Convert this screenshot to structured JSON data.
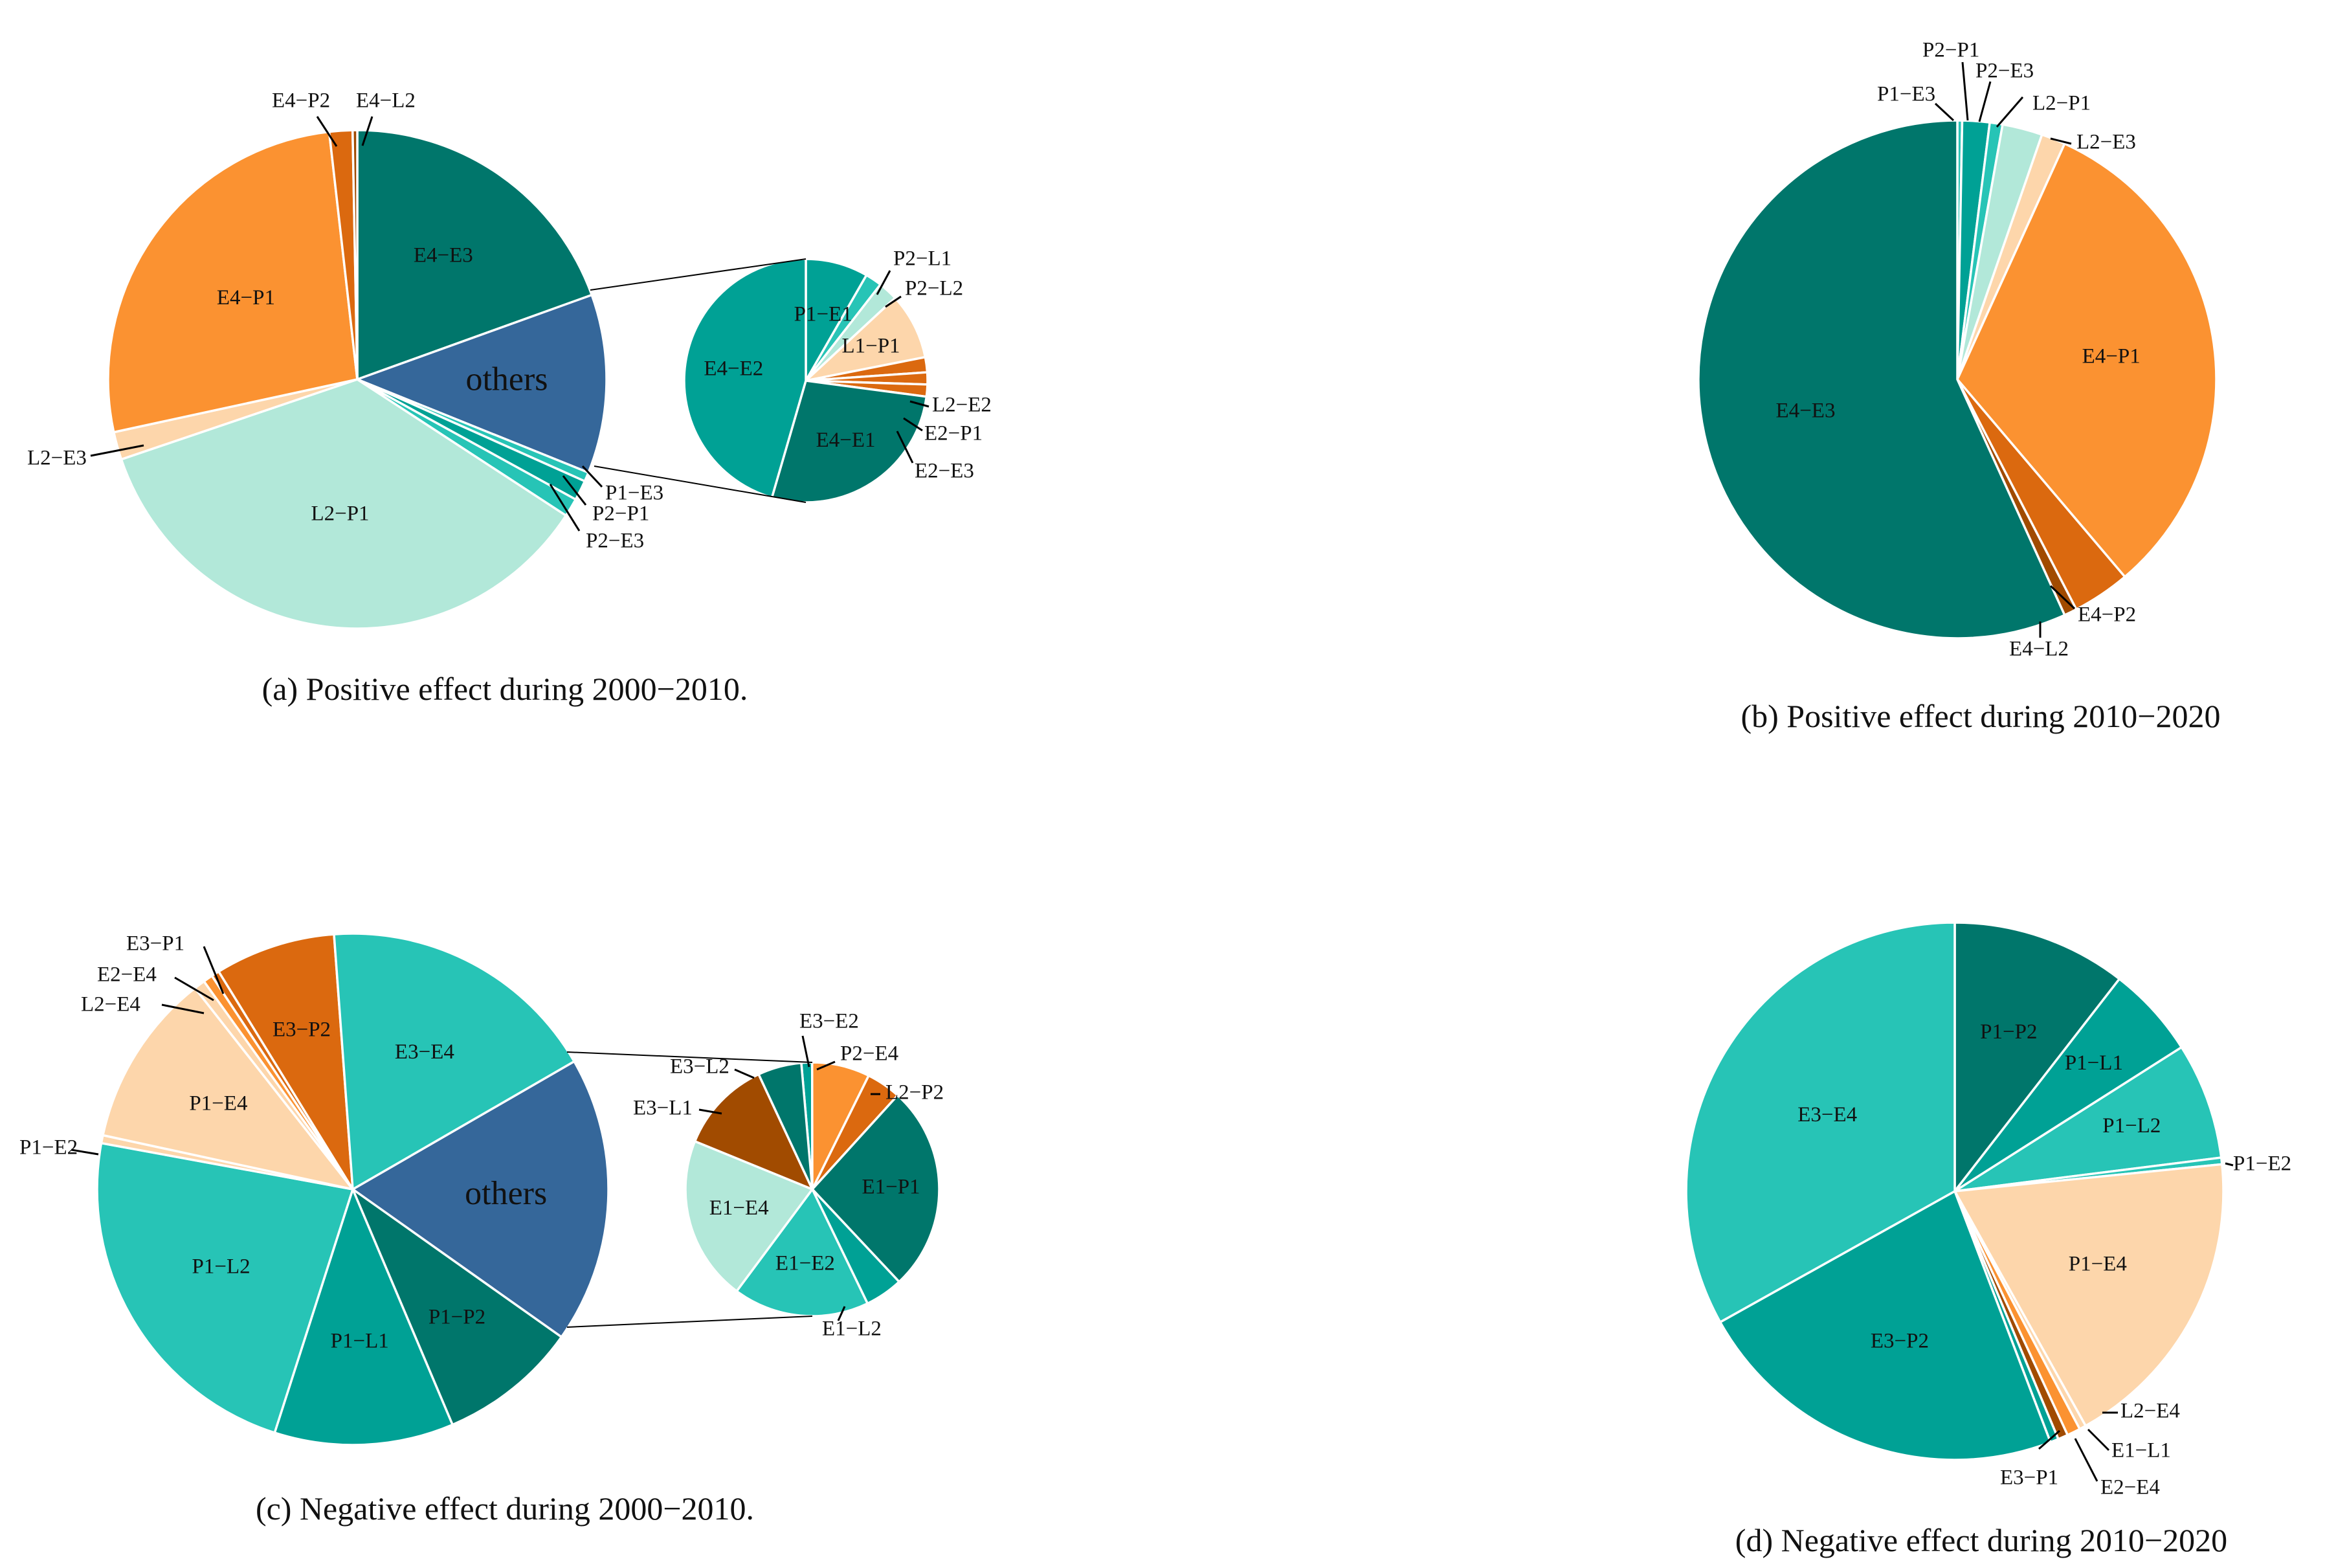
{
  "colors": {
    "teal_dark": "#00766b",
    "teal_mid": "#00a195",
    "teal_light": "#27c4b6",
    "mint": "#b2e8d9",
    "peach": "#fdd6ab",
    "orange": "#fb9231",
    "orange_dark": "#db690f",
    "brown": "#a14b00",
    "blue": "#35679a"
  },
  "chart_data": [
    {
      "type": "pie",
      "id": "a",
      "title": "(a) Positive effect during 2000−2010.",
      "main": {
        "slices": [
          {
            "label": "E4−E3",
            "value": 19.5,
            "color": "#00766b"
          },
          {
            "label": "others",
            "value": 11.6,
            "color": "#35679a"
          },
          {
            "label": "P1−E3",
            "value": 0.6,
            "color": "#27c4b6"
          },
          {
            "label": "P2−P1",
            "value": 1.3,
            "color": "#00a195"
          },
          {
            "label": "P2−E3",
            "value": 1.2,
            "color": "#27c4b6"
          },
          {
            "label": "L2−P1",
            "value": 35.6,
            "color": "#b2e8d9"
          },
          {
            "label": "L2−E3",
            "value": 1.8,
            "color": "#fdd6ab"
          },
          {
            "label": "E4−P1",
            "value": 26.6,
            "color": "#fb9231"
          },
          {
            "label": "E4−P2",
            "value": 1.5,
            "color": "#db690f"
          },
          {
            "label": "E4−L2",
            "value": 0.3,
            "color": "#a14b00"
          }
        ]
      },
      "others": {
        "slices": [
          {
            "label": "P1−E1",
            "value": 8.3,
            "color": "#00a195"
          },
          {
            "label": "P2−L1",
            "value": 2.2,
            "color": "#27c4b6"
          },
          {
            "label": "P2−L2",
            "value": 2.6,
            "color": "#b2e8d9"
          },
          {
            "label": "L1−P1",
            "value": 8.8,
            "color": "#fdd6ab"
          },
          {
            "label": "L2−E2",
            "value": 2.0,
            "color": "#db690f"
          },
          {
            "label": "E2−P1",
            "value": 1.6,
            "color": "#db690f"
          },
          {
            "label": "E2−E3",
            "value": 1.6,
            "color": "#db690f"
          },
          {
            "label": "E4−E1",
            "value": 27.4,
            "color": "#00766b"
          },
          {
            "label": "E4−E2",
            "value": 45.5,
            "color": "#00a195"
          }
        ]
      }
    },
    {
      "type": "pie",
      "id": "b",
      "title": "(b) Positive effect during 2010−2020",
      "main": {
        "slices": [
          {
            "label": "P1−E3",
            "value": 0.3,
            "color": "#27c4b6"
          },
          {
            "label": "P2−P1",
            "value": 1.7,
            "color": "#00a195"
          },
          {
            "label": "P2−E3",
            "value": 0.8,
            "color": "#27c4b6"
          },
          {
            "label": "L2−P1",
            "value": 2.5,
            "color": "#b2e8d9"
          },
          {
            "label": "L2−E3",
            "value": 1.5,
            "color": "#fdd6ab"
          },
          {
            "label": "E4−P1",
            "value": 32.0,
            "color": "#fb9231"
          },
          {
            "label": "E4−P2",
            "value": 3.6,
            "color": "#db690f"
          },
          {
            "label": "E4−L2",
            "value": 0.8,
            "color": "#a14b00"
          },
          {
            "label": "E4−E3",
            "value": 56.8,
            "color": "#00766b"
          }
        ]
      }
    },
    {
      "type": "pie",
      "id": "c",
      "title": "(c) Negative effect during 2000−2010.",
      "main": {
        "slices": [
          {
            "label": "others",
            "value": 18.1,
            "color": "#35679a"
          },
          {
            "label": "P1−P2",
            "value": 8.8,
            "color": "#00766b"
          },
          {
            "label": "P1−L1",
            "value": 11.3,
            "color": "#00a195"
          },
          {
            "label": "P1−L2",
            "value": 22.9,
            "color": "#27c4b6"
          },
          {
            "label": "P1−E2",
            "value": 0.5,
            "color": "#fdd6ab"
          },
          {
            "label": "P1−E4",
            "value": 11.0,
            "color": "#fdd6ab"
          },
          {
            "label": "L2−E4",
            "value": 0.7,
            "color": "#fdd6ab"
          },
          {
            "label": "E2−E4",
            "value": 0.6,
            "color": "#fb9231"
          },
          {
            "label": "E3−P1",
            "value": 0.5,
            "color": "#db690f"
          },
          {
            "label": "E3−P2",
            "value": 7.6,
            "color": "#db690f"
          },
          {
            "label": "E3−E4",
            "value": 17.8,
            "color": "#27c4b6"
          }
        ]
      },
      "others": {
        "slices": [
          {
            "label": "E3−E2",
            "value": 1.3,
            "color": "#00a195"
          },
          {
            "label": "P2−E4",
            "value": 7.0,
            "color": "#fb9231"
          },
          {
            "label": "L2−P2",
            "value": 4.2,
            "color": "#db690f"
          },
          {
            "label": "E1−P1",
            "value": 25.0,
            "color": "#00766b"
          },
          {
            "label": "E1−L2",
            "value": 4.6,
            "color": "#00a195"
          },
          {
            "label": "E1−E2",
            "value": 16.5,
            "color": "#27c4b6"
          },
          {
            "label": "E1−E4",
            "value": 20.0,
            "color": "#b2e8d9"
          },
          {
            "label": "E3−L1",
            "value": 11.3,
            "color": "#a14b00"
          },
          {
            "label": "E3−L2",
            "value": 5.3,
            "color": "#00766b"
          }
        ]
      }
    },
    {
      "type": "pie",
      "id": "d",
      "title": "(d) Negative effect during 2010−2020",
      "main": {
        "slices": [
          {
            "label": "P1−P2",
            "value": 10.5,
            "color": "#00766b"
          },
          {
            "label": "P1−L1",
            "value": 5.5,
            "color": "#00a195"
          },
          {
            "label": "P1−L2",
            "value": 7.0,
            "color": "#27c4b6"
          },
          {
            "label": "P1−E2",
            "value": 0.4,
            "color": "#27c4b6"
          },
          {
            "label": "P1−E4",
            "value": 18.5,
            "color": "#fdd6ab"
          },
          {
            "label": "L2−E4",
            "value": 0.4,
            "color": "#fdd6ab"
          },
          {
            "label": "E1−L1",
            "value": 0.8,
            "color": "#fb9231"
          },
          {
            "label": "E2−E4",
            "value": 0.6,
            "color": "#a14b00"
          },
          {
            "label": "E3−P1",
            "value": 0.5,
            "color": "#00a195"
          },
          {
            "label": "E3−P2",
            "value": 22.7,
            "color": "#00a195"
          },
          {
            "label": "E3−E4",
            "value": 33.1,
            "color": "#27c4b6"
          }
        ]
      }
    }
  ]
}
